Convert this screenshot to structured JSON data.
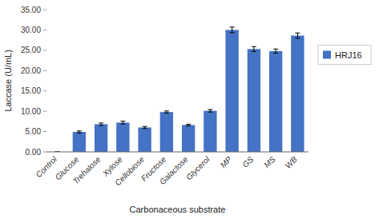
{
  "chart_data": {
    "type": "bar",
    "categories": [
      "Control",
      "Glucose",
      "Trehalose",
      "Xylose",
      "Cellobiose",
      "Fructose",
      "Galactose",
      "Glycerol",
      "MP",
      "GS",
      "MS",
      "WB"
    ],
    "series": [
      {
        "name": "HRJ16",
        "color": "#4472C4",
        "values": [
          0.0,
          4.9,
          6.8,
          7.2,
          6.0,
          9.8,
          6.6,
          10.1,
          30.0,
          25.3,
          24.8,
          28.6
        ],
        "errors": [
          0.0,
          0.25,
          0.3,
          0.35,
          0.25,
          0.25,
          0.2,
          0.3,
          0.7,
          0.6,
          0.5,
          0.65
        ]
      }
    ],
    "ylabel": "Laccase (U/mL)",
    "xlabel": "Carbonaceous substrate",
    "ylim": [
      0,
      35
    ],
    "yticks": [
      {
        "value": 0.0,
        "label": "0.00"
      },
      {
        "value": 5.0,
        "label": "5.00"
      },
      {
        "value": 10.0,
        "label": "10.00"
      },
      {
        "value": 15.0,
        "label": "15.00"
      },
      {
        "value": 20.0,
        "label": "20.00"
      },
      {
        "value": 25.0,
        "label": "25.00"
      },
      {
        "value": 30.0,
        "label": "30.00"
      },
      {
        "value": 35.0,
        "label": "35.00"
      }
    ],
    "grid": false,
    "legend": "right"
  }
}
